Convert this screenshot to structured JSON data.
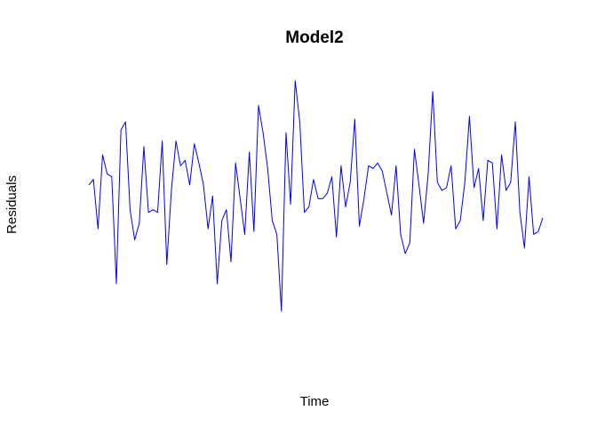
{
  "chart_data": {
    "type": "line",
    "title": "Model2",
    "xlabel": "Time",
    "ylabel": "Residuals",
    "grid": false,
    "axes_visible": false,
    "series": [
      {
        "color": "#0000ff",
        "values": [
          0.05,
          0.15,
          -0.75,
          0.6,
          0.25,
          0.2,
          -1.75,
          1.05,
          1.2,
          -0.4,
          -0.95,
          -0.65,
          0.75,
          -0.45,
          -0.4,
          -0.45,
          0.85,
          -1.4,
          -0.05,
          0.85,
          0.4,
          0.5,
          0.05,
          0.8,
          0.45,
          0.05,
          -0.75,
          -0.15,
          -1.75,
          -0.6,
          -0.4,
          -1.35,
          0.45,
          -0.2,
          -0.85,
          0.65,
          -0.8,
          1.5,
          1.0,
          0.35,
          -0.6,
          -0.85,
          -2.25,
          1.0,
          -0.3,
          1.95,
          1.2,
          -0.45,
          -0.35,
          0.15,
          -0.2,
          -0.2,
          -0.1,
          0.2,
          -0.9,
          0.4,
          -0.35,
          0.1,
          1.25,
          -0.7,
          -0.2,
          0.4,
          0.35,
          0.45,
          0.3,
          -0.1,
          -0.5,
          0.4,
          -0.85,
          -1.2,
          -1.0,
          0.7,
          0.05,
          -0.65,
          0.25,
          1.75,
          0.1,
          -0.05,
          0.0,
          0.4,
          -0.75,
          -0.6,
          0.1,
          1.3,
          0.0,
          0.35,
          -0.6,
          0.5,
          0.45,
          -0.75,
          0.6,
          -0.05,
          0.1,
          1.2,
          -0.45,
          -1.1,
          0.2,
          -0.85,
          -0.8,
          -0.55
        ]
      }
    ]
  }
}
